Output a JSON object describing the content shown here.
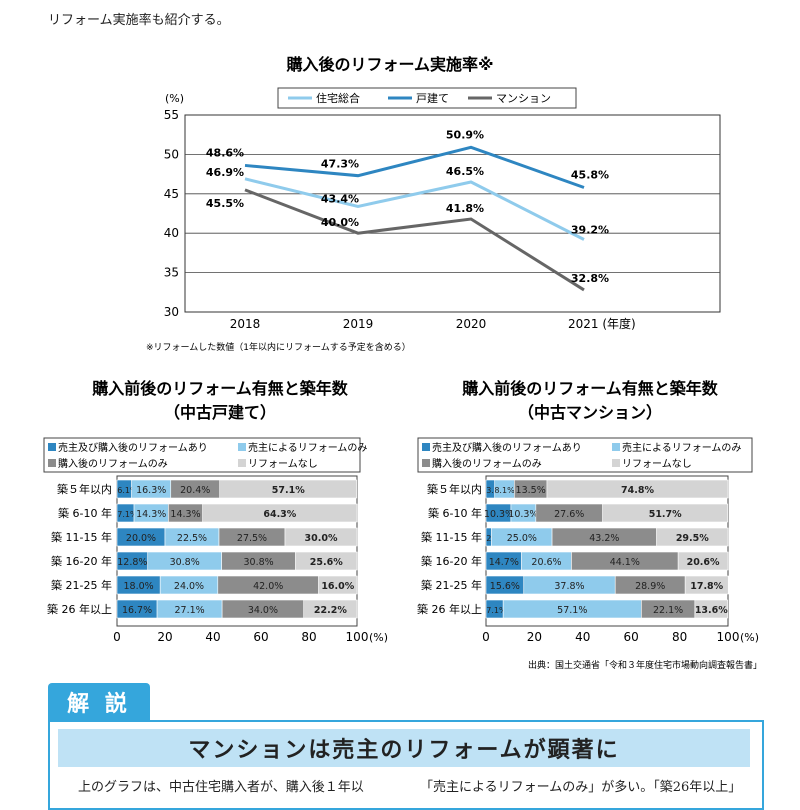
{
  "intro_text": "リフォーム実施率も紹介する。",
  "line_chart": {
    "title": "購入後のリフォーム実施率※",
    "ylabel": "(%)",
    "legend": [
      "住宅総合",
      "戸建て",
      "マンション"
    ],
    "x_last_suffix": "(年度)",
    "note": "※リフォームした数値（1年以内にリフォームする予定を含める）"
  },
  "stacked_left": {
    "title_line1": "購入前後のリフォーム有無と築年数",
    "title_line2": "（中古戸建て）",
    "legend": [
      "売主及び購入後のリフォームあり",
      "売主によるリフォームのみ",
      "購入後のリフォームのみ",
      "リフォームなし"
    ]
  },
  "stacked_right": {
    "title_line1": "購入前後のリフォーム有無と築年数",
    "title_line2": "（中古マンション）",
    "legend": [
      "売主及び購入後のリフォームあり",
      "売主によるリフォームのみ",
      "購入後のリフォームのみ",
      "リフォームなし"
    ]
  },
  "source": "出典：国土交通省「令和３年度住宅市場動向調査報告書」",
  "commentary": {
    "header": "解 説",
    "headline": "マンションは売主のリフォームが顕著に",
    "body_left": "上のグラフは、中古住宅購入者が、購入後１年以",
    "body_right": "「売主によるリフォームのみ」が多い。「築26年以上」"
  },
  "chart_data": [
    {
      "type": "line",
      "title": "購入後のリフォーム実施率※",
      "ylabel": "(%)",
      "x": [
        "2018",
        "2019",
        "2020",
        "2021"
      ],
      "ylim": [
        30,
        55
      ],
      "yticks": [
        30,
        35,
        40,
        45,
        50,
        55
      ],
      "grid": true,
      "legend_position": "top",
      "series": [
        {
          "name": "住宅総合",
          "color": "#8fcbec",
          "values": [
            46.9,
            43.4,
            46.5,
            39.2
          ]
        },
        {
          "name": "戸建て",
          "color": "#2e86c1",
          "values": [
            48.6,
            47.3,
            50.9,
            45.8
          ]
        },
        {
          "name": "マンション",
          "color": "#666666",
          "values": [
            45.5,
            40.0,
            41.8,
            32.8
          ]
        }
      ]
    },
    {
      "type": "bar",
      "orientation": "horizontal",
      "stacked": true,
      "title": "購入前後のリフォーム有無と築年数（中古戸建て）",
      "categories": [
        "築５年以内",
        "築 6-10 年",
        "築 11-15 年",
        "築 16-20 年",
        "築 21-25 年",
        "築 26 年以上"
      ],
      "xlim": [
        0,
        100
      ],
      "xticks": [
        0,
        20,
        40,
        60,
        80,
        100
      ],
      "x_unit": "(%)",
      "series": [
        {
          "name": "売主及び購入後のリフォームあり",
          "color": "#2e86c1",
          "values": [
            6.1,
            7.1,
            20.0,
            12.8,
            18.0,
            16.7
          ],
          "labels": [
            "6.1%",
            "7.1%",
            "20.0%",
            "12.8%",
            "18.0%",
            "16.7%"
          ]
        },
        {
          "name": "売主によるリフォームのみ",
          "color": "#8fcbec",
          "values": [
            16.3,
            14.3,
            22.5,
            30.8,
            24.0,
            27.1
          ],
          "labels": [
            "16.3%",
            "14.3%",
            "22.5%",
            "30.8%",
            "24.0%",
            "27.1%"
          ]
        },
        {
          "name": "購入後のリフォームのみ",
          "color": "#8c8c8c",
          "values": [
            20.4,
            14.3,
            27.5,
            30.8,
            42.0,
            34.0
          ],
          "labels": [
            "20.4%",
            "14.3%",
            "27.5%",
            "30.8%",
            "42.0%",
            "34.0%"
          ]
        },
        {
          "name": "リフォームなし",
          "color": "#d4d4d4",
          "values": [
            57.1,
            64.3,
            30.0,
            25.6,
            16.0,
            22.2
          ],
          "labels": [
            "57.1%",
            "64.3%",
            "30.0%",
            "25.6%",
            "16.0%",
            "22.2%"
          ]
        }
      ]
    },
    {
      "type": "bar",
      "orientation": "horizontal",
      "stacked": true,
      "title": "購入前後のリフォーム有無と築年数（中古マンション）",
      "categories": [
        "築５年以内",
        "築 6-10 年",
        "築 11-15 年",
        "築 16-20 年",
        "築 21-25 年",
        "築 26 年以上"
      ],
      "xlim": [
        0,
        100
      ],
      "xticks": [
        0,
        20,
        40,
        60,
        80,
        100
      ],
      "x_unit": "(%)",
      "series": [
        {
          "name": "売主及び購入後のリフォームあり",
          "color": "#2e86c1",
          "values": [
            3.6,
            10.3,
            2.3,
            14.7,
            15.6,
            7.1
          ],
          "labels": [
            "3.6%",
            "10.3%",
            "2.3%",
            "14.7%",
            "15.6%",
            "7.1%"
          ]
        },
        {
          "name": "売主によるリフォームのみ",
          "color": "#8fcbec",
          "values": [
            8.1,
            10.3,
            25.0,
            20.6,
            37.8,
            57.1
          ],
          "labels": [
            "8.1%",
            "10.3%",
            "25.0%",
            "20.6%",
            "37.8%",
            "57.1%"
          ]
        },
        {
          "name": "購入後のリフォームのみ",
          "color": "#8c8c8c",
          "values": [
            13.5,
            27.6,
            43.2,
            44.1,
            28.9,
            22.1
          ],
          "labels": [
            "13.5%",
            "27.6%",
            "43.2%",
            "44.1%",
            "28.9%",
            "22.1%"
          ]
        },
        {
          "name": "リフォームなし",
          "color": "#d4d4d4",
          "values": [
            74.8,
            51.7,
            29.5,
            20.6,
            17.8,
            13.6
          ],
          "labels": [
            "74.8%",
            "51.7%",
            "29.5%",
            "20.6%",
            "17.8%",
            "13.6%"
          ]
        }
      ]
    }
  ]
}
